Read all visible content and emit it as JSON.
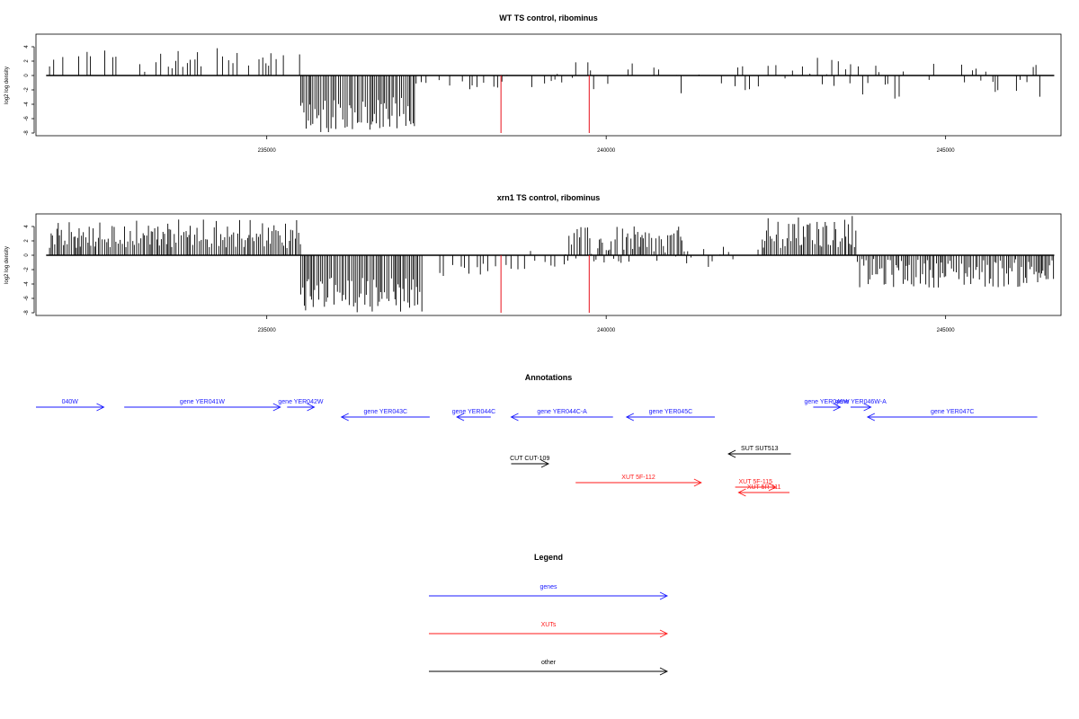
{
  "chart_data": [
    {
      "type": "bar",
      "title": "WT TS control, ribominus",
      "ylabel": "log2 log density",
      "xlabel": "",
      "xlim": [
        231600,
        246700
      ],
      "ylim": [
        -8,
        5
      ],
      "xticks": [
        235000,
        240000,
        245000
      ],
      "xtick_labels": [
        "235000",
        "240000",
        "245000"
      ],
      "yticks": [
        -8,
        -6,
        -4,
        -2,
        0,
        2,
        4
      ],
      "ytick_labels": [
        "-8",
        "-6",
        "-4",
        "-2",
        "0",
        "2",
        "4"
      ],
      "grid": false,
      "baseline_range": [
        231750,
        246600
      ],
      "highlight_color": "#e8101a",
      "highlights": [
        {
          "x": 238450,
          "value": -8
        },
        {
          "x": 239750,
          "value": -8
        }
      ],
      "density_segments": [
        {
          "from": 231800,
          "to": 235500,
          "min": 0.5,
          "max": 3,
          "peak_every": 5,
          "peak": 4
        },
        {
          "from": 235500,
          "to": 237200,
          "min": -7.5,
          "max": -3,
          "peak_every": 4,
          "peak": -8,
          "dense": true
        },
        {
          "from": 237200,
          "to": 238300,
          "min": -2,
          "max": -0.5
        },
        {
          "from": 238300,
          "to": 239500,
          "min": -1.8,
          "max": 0.5
        },
        {
          "from": 239500,
          "to": 242500,
          "min": -2.5,
          "max": 2
        },
        {
          "from": 242500,
          "to": 243600,
          "min": -2,
          "max": 2.5
        },
        {
          "from": 243600,
          "to": 246600,
          "min": -3.5,
          "max": 1.8
        }
      ]
    },
    {
      "type": "bar",
      "title": "xrn1 TS control, ribominus",
      "ylabel": "log2 log density",
      "xlabel": "",
      "xlim": [
        231600,
        246700
      ],
      "ylim": [
        -8,
        5
      ],
      "xticks": [
        235000,
        240000,
        245000
      ],
      "xtick_labels": [
        "235000",
        "240000",
        "245000"
      ],
      "yticks": [
        -8,
        -6,
        -4,
        -2,
        0,
        2,
        4
      ],
      "ytick_labels": [
        "-8",
        "-6",
        "-4",
        "-2",
        "0",
        "2",
        "4"
      ],
      "grid": false,
      "baseline_range": [
        231750,
        246600
      ],
      "highlight_color": "#e8101a",
      "highlights": [
        {
          "x": 238450,
          "value": -8
        },
        {
          "x": 239750,
          "value": -8
        }
      ],
      "density_segments": [
        {
          "from": 231800,
          "to": 235500,
          "min": 1,
          "max": 4,
          "peak_every": 6,
          "peak": 5,
          "dense": true
        },
        {
          "from": 235500,
          "to": 237300,
          "min": -7.5,
          "max": -3,
          "peak_every": 4,
          "peak": -8,
          "dense": true
        },
        {
          "from": 237300,
          "to": 238300,
          "min": -3,
          "max": -1
        },
        {
          "from": 238300,
          "to": 239400,
          "min": -2,
          "max": 1
        },
        {
          "from": 239400,
          "to": 241200,
          "min": -1.5,
          "max": 4,
          "dense": true
        },
        {
          "from": 241200,
          "to": 242300,
          "min": -2,
          "max": 1.5
        },
        {
          "from": 242300,
          "to": 243700,
          "min": 1,
          "max": 4.5,
          "peak_every": 5,
          "peak": 5.5,
          "dense": true
        },
        {
          "from": 243700,
          "to": 246600,
          "min": -4.5,
          "max": -0.5,
          "dense": true
        }
      ]
    }
  ],
  "annotations": {
    "title": "Annotations",
    "features": [
      {
        "label": "040W",
        "from": 231600,
        "to": 232600,
        "row": 0,
        "dir": "right",
        "kind": "gene"
      },
      {
        "label": "gene YER041W",
        "from": 232900,
        "to": 235200,
        "row": 0,
        "dir": "right",
        "kind": "gene"
      },
      {
        "label": "gene YER042W",
        "from": 235300,
        "to": 235700,
        "row": 0,
        "dir": "right",
        "kind": "gene"
      },
      {
        "label": "gene YER043C",
        "from": 236100,
        "to": 237400,
        "row": 1,
        "dir": "left",
        "kind": "gene"
      },
      {
        "label": "gene YER044C",
        "from": 237800,
        "to": 238300,
        "row": 1,
        "dir": "left",
        "kind": "gene"
      },
      {
        "label": "gene YER044C-A",
        "from": 238600,
        "to": 240100,
        "row": 1,
        "dir": "left",
        "kind": "gene"
      },
      {
        "label": "gene YER045C",
        "from": 240300,
        "to": 241600,
        "row": 1,
        "dir": "left",
        "kind": "gene"
      },
      {
        "label": "gene YER046W",
        "from": 243050,
        "to": 243450,
        "row": 0,
        "dir": "right",
        "kind": "gene"
      },
      {
        "label": "gene YER046W-A",
        "from": 243600,
        "to": 243900,
        "row": 0,
        "dir": "right",
        "kind": "gene"
      },
      {
        "label": "gene YER047C",
        "from": 243850,
        "to": 246350,
        "row": 1,
        "dir": "left",
        "kind": "gene"
      },
      {
        "label": "CUT CUT-109",
        "from": 238600,
        "to": 239150,
        "row": 3,
        "dir": "right",
        "kind": "other"
      },
      {
        "label": "SUT SUT513",
        "from": 241800,
        "to": 242720,
        "row": 2,
        "dir": "left",
        "kind": "other"
      },
      {
        "label": "XUT 5F-112",
        "from": 239550,
        "to": 241400,
        "row": 4,
        "dir": "right",
        "kind": "xut"
      },
      {
        "label": "XUT 5F-115",
        "from": 241900,
        "to": 242500,
        "row": 5,
        "dir": "right",
        "kind": "xut"
      },
      {
        "label": "XUT 5R-111",
        "from": 241950,
        "to": 242700,
        "row": 6,
        "dir": "left",
        "kind": "xut"
      }
    ]
  },
  "legend": {
    "title": "Legend",
    "entries": [
      {
        "label": "genes",
        "color": "#1a1aff"
      },
      {
        "label": "XUTs",
        "color": "#ff1a1a"
      },
      {
        "label": "other",
        "color": "#000000"
      }
    ]
  },
  "colors": {
    "gene": "#1a1aff",
    "xut": "#ff1a1a",
    "other": "#000000",
    "bars": "#000000"
  }
}
